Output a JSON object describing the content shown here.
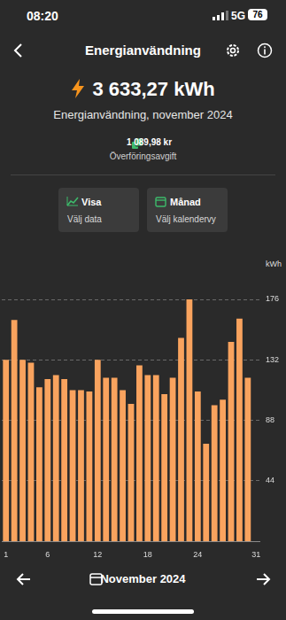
{
  "status_bar": {
    "time": "08:20",
    "network": "5G",
    "battery": "76"
  },
  "header": {
    "title": "Energianvändning"
  },
  "summary": {
    "value": "3 633,27 kWh",
    "caption": "Energianvändning, november 2024",
    "fee": "1 089,98 kr",
    "fee_label": "Överföringsavgift"
  },
  "buttons": [
    {
      "title": "Visa",
      "subtitle": "Välj data"
    },
    {
      "title": "Månad",
      "subtitle": "Välj kalendervy"
    }
  ],
  "chart_data": {
    "type": "bar",
    "y_label": "kWh",
    "categories": [
      "1",
      null,
      null,
      null,
      null,
      "6",
      null,
      null,
      null,
      null,
      null,
      "12",
      null,
      null,
      null,
      null,
      null,
      "18",
      null,
      null,
      null,
      null,
      null,
      "24",
      null,
      null,
      null,
      null,
      null,
      null,
      "31"
    ],
    "values": [
      132,
      161,
      132,
      130,
      112,
      118,
      121,
      118,
      110,
      110,
      109,
      132,
      119,
      119,
      110,
      100,
      128,
      121,
      121,
      107,
      119,
      148,
      176,
      109,
      71,
      99,
      103,
      145,
      162,
      119,
      null
    ],
    "color": "#f9a35e",
    "ylim": [
      0,
      176
    ],
    "yticks": [
      44,
      88,
      132,
      176
    ],
    "grid": true
  },
  "footer": {
    "period": "November 2024"
  }
}
